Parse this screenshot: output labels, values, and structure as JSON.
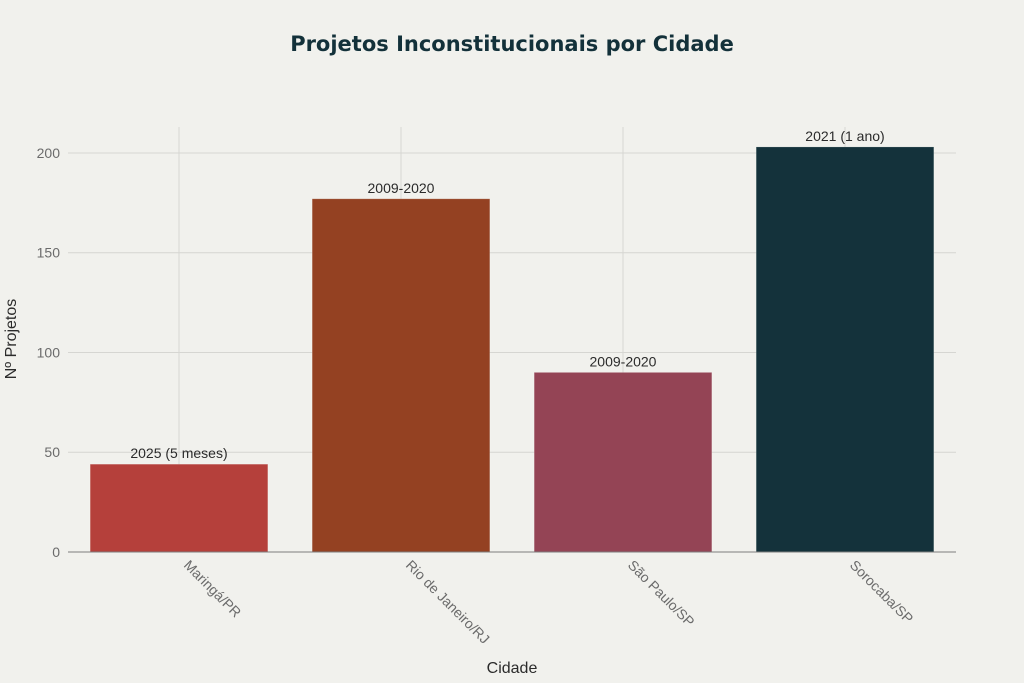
{
  "chart_data": {
    "type": "bar",
    "title": "Projetos Inconstitucionais por Cidade",
    "xlabel": "Cidade",
    "ylabel": "Nº Projetos",
    "categories": [
      "Maringá/PR",
      "Rio de Janeiro/RJ",
      "São Paulo/SP",
      "Sorocaba/SP"
    ],
    "values": [
      44,
      177,
      90,
      203
    ],
    "data_labels": [
      "2025 (5 meses)",
      "2009-2020",
      "2009-2020",
      "2021 (1 ano)"
    ],
    "colors": [
      "#b5403b",
      "#944122",
      "#944455",
      "#14323b"
    ],
    "ylim": [
      0,
      213
    ],
    "yticks": [
      0,
      50,
      100,
      150,
      200
    ],
    "grid": true,
    "legend": "none"
  }
}
